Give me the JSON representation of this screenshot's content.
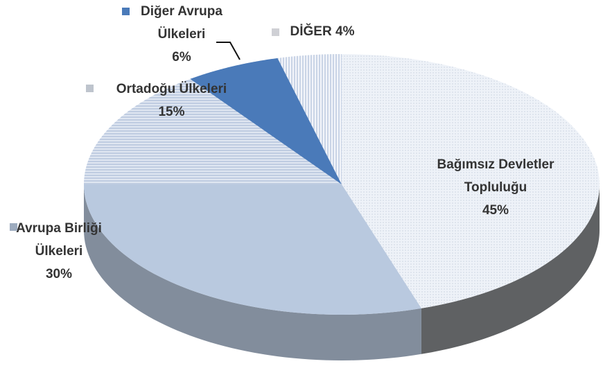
{
  "chart_data": {
    "type": "pie",
    "categories": [
      "Bağımsız Devletler Topluluğu",
      "Avrupa Birliği Ülkeleri",
      "Ortadoğu Ülkeleri",
      "Diğer Avrupa Ülkeleri",
      "DİĞER"
    ],
    "values": [
      45,
      30,
      15,
      6,
      4
    ],
    "value_labels": [
      "45%",
      "30%",
      "15%",
      "6%",
      "4%"
    ],
    "colors": [
      "#eef2f8",
      "#b9c9df",
      "#dfe6f1",
      "#4a7ab9",
      "#f3f5fa"
    ]
  }
}
